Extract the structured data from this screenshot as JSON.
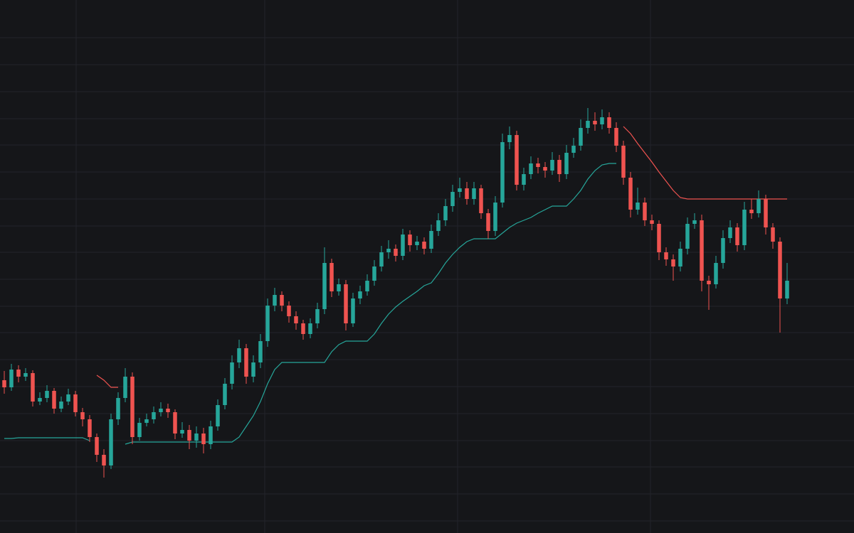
{
  "chart_data": {
    "type": "candlestick",
    "up_color": "#26a69a",
    "down_color": "#ef5350",
    "background": "#151619",
    "grid_color": "#22242a",
    "grid": true,
    "xlim": [
      -0.6,
      119.4
    ],
    "xticks": [
      10.1,
      36.6,
      63.7,
      90.8
    ],
    "ylim": [
      0,
      750
    ],
    "yticks": [
      17,
      55,
      93,
      130,
      168,
      206,
      244,
      282,
      319,
      357,
      395,
      432,
      470,
      508,
      546,
      583,
      621,
      659,
      697
    ],
    "ohlc": [
      [
        215,
        228,
        196,
        205
      ],
      [
        205,
        238,
        200,
        230
      ],
      [
        230,
        236,
        212,
        220
      ],
      [
        220,
        232,
        214,
        225
      ],
      [
        225,
        229,
        178,
        185
      ],
      [
        185,
        198,
        180,
        190
      ],
      [
        190,
        208,
        184,
        200
      ],
      [
        200,
        204,
        168,
        175
      ],
      [
        175,
        192,
        170,
        185
      ],
      [
        185,
        203,
        180,
        195
      ],
      [
        195,
        200,
        164,
        170
      ],
      [
        170,
        176,
        150,
        160
      ],
      [
        160,
        166,
        128,
        135
      ],
      [
        135,
        140,
        100,
        110
      ],
      [
        110,
        118,
        78,
        95
      ],
      [
        95,
        168,
        90,
        160
      ],
      [
        160,
        198,
        152,
        190
      ],
      [
        190,
        232,
        184,
        220
      ],
      [
        220,
        226,
        125,
        135
      ],
      [
        135,
        162,
        130,
        155
      ],
      [
        155,
        168,
        150,
        160
      ],
      [
        160,
        178,
        154,
        170
      ],
      [
        170,
        184,
        164,
        175
      ],
      [
        175,
        182,
        162,
        170
      ],
      [
        170,
        174,
        132,
        140
      ],
      [
        140,
        156,
        134,
        145
      ],
      [
        145,
        152,
        118,
        130
      ],
      [
        130,
        150,
        120,
        140
      ],
      [
        140,
        148,
        112,
        125
      ],
      [
        125,
        158,
        118,
        150
      ],
      [
        150,
        188,
        144,
        180
      ],
      [
        180,
        218,
        174,
        210
      ],
      [
        210,
        250,
        202,
        240
      ],
      [
        240,
        272,
        232,
        260
      ],
      [
        260,
        266,
        210,
        220
      ],
      [
        220,
        250,
        212,
        240
      ],
      [
        240,
        280,
        232,
        270
      ],
      [
        270,
        330,
        262,
        320
      ],
      [
        320,
        345,
        312,
        335
      ],
      [
        335,
        340,
        312,
        320
      ],
      [
        320,
        326,
        296,
        305
      ],
      [
        305,
        312,
        286,
        295
      ],
      [
        295,
        300,
        272,
        280
      ],
      [
        280,
        302,
        274,
        295
      ],
      [
        295,
        324,
        288,
        315
      ],
      [
        315,
        402,
        308,
        380
      ],
      [
        380,
        386,
        332,
        340
      ],
      [
        340,
        358,
        334,
        350
      ],
      [
        350,
        356,
        285,
        295
      ],
      [
        295,
        338,
        290,
        330
      ],
      [
        330,
        348,
        322,
        340
      ],
      [
        340,
        364,
        334,
        355
      ],
      [
        355,
        384,
        348,
        375
      ],
      [
        375,
        404,
        368,
        395
      ],
      [
        395,
        412,
        386,
        400
      ],
      [
        400,
        406,
        382,
        390
      ],
      [
        390,
        428,
        384,
        420
      ],
      [
        420,
        426,
        396,
        405
      ],
      [
        405,
        418,
        398,
        410
      ],
      [
        410,
        416,
        392,
        400
      ],
      [
        400,
        434,
        394,
        425
      ],
      [
        425,
        450,
        418,
        440
      ],
      [
        440,
        470,
        432,
        460
      ],
      [
        460,
        490,
        452,
        480
      ],
      [
        480,
        500,
        472,
        485
      ],
      [
        485,
        494,
        462,
        470
      ],
      [
        470,
        494,
        462,
        485
      ],
      [
        485,
        490,
        442,
        450
      ],
      [
        450,
        456,
        414,
        425
      ],
      [
        425,
        474,
        418,
        465
      ],
      [
        465,
        562,
        458,
        550
      ],
      [
        550,
        572,
        540,
        560
      ],
      [
        560,
        566,
        482,
        490
      ],
      [
        490,
        514,
        482,
        505
      ],
      [
        505,
        530,
        498,
        520
      ],
      [
        520,
        528,
        506,
        515
      ],
      [
        515,
        522,
        500,
        510
      ],
      [
        510,
        536,
        504,
        525
      ],
      [
        525,
        532,
        494,
        505
      ],
      [
        505,
        546,
        498,
        535
      ],
      [
        535,
        556,
        528,
        545
      ],
      [
        545,
        582,
        538,
        570
      ],
      [
        570,
        598,
        562,
        580
      ],
      [
        580,
        592,
        566,
        575
      ],
      [
        575,
        596,
        568,
        585
      ],
      [
        585,
        592,
        562,
        570
      ],
      [
        570,
        578,
        536,
        545
      ],
      [
        545,
        552,
        490,
        500
      ],
      [
        500,
        508,
        444,
        455
      ],
      [
        455,
        486,
        448,
        465
      ],
      [
        465,
        472,
        432,
        440
      ],
      [
        440,
        448,
        426,
        435
      ],
      [
        435,
        440,
        384,
        395
      ],
      [
        395,
        402,
        376,
        385
      ],
      [
        385,
        392,
        355,
        375
      ],
      [
        375,
        410,
        368,
        400
      ],
      [
        400,
        444,
        392,
        435
      ],
      [
        435,
        450,
        428,
        440
      ],
      [
        440,
        448,
        340,
        355
      ],
      [
        355,
        362,
        314,
        350
      ],
      [
        350,
        390,
        344,
        380
      ],
      [
        380,
        426,
        372,
        415
      ],
      [
        415,
        440,
        408,
        430
      ],
      [
        430,
        436,
        396,
        405
      ],
      [
        405,
        466,
        398,
        455
      ],
      [
        455,
        470,
        442,
        450
      ],
      [
        450,
        482,
        444,
        470
      ],
      [
        470,
        476,
        420,
        430
      ],
      [
        430,
        436,
        400,
        410
      ],
      [
        410,
        416,
        282,
        330
      ],
      [
        330,
        380,
        322,
        355
      ]
    ],
    "lines": [
      {
        "color": "#26a69a",
        "values": [
          133,
          133,
          134,
          134,
          134,
          134,
          134,
          134,
          134,
          134,
          134,
          134,
          130,
          null,
          null,
          null,
          null,
          125,
          128,
          128,
          128,
          128,
          128,
          128,
          128,
          128,
          128,
          128,
          128,
          128,
          128,
          128,
          128,
          135,
          150,
          165,
          185,
          210,
          230,
          240,
          240,
          240,
          240,
          240,
          240,
          240,
          255,
          265,
          270,
          270,
          270,
          270,
          280,
          295,
          308,
          318,
          326,
          333,
          340,
          348,
          352,
          365,
          380,
          392,
          402,
          410,
          414,
          414,
          414,
          414,
          422,
          430,
          436,
          440,
          444,
          450,
          455,
          460,
          460,
          460,
          470,
          482,
          498,
          510,
          518,
          520,
          520,
          null,
          null,
          null,
          null,
          null,
          null,
          null,
          null,
          null,
          null,
          null,
          null,
          null,
          null,
          null,
          null,
          null,
          null,
          null,
          null,
          null,
          null,
          null,
          null
        ]
      },
      {
        "color": "#ef5350",
        "values": [
          null,
          null,
          null,
          null,
          null,
          null,
          null,
          null,
          null,
          null,
          null,
          null,
          null,
          222,
          215,
          205,
          205,
          null,
          null,
          null,
          null,
          null,
          null,
          null,
          null,
          null,
          null,
          null,
          null,
          null,
          null,
          null,
          null,
          null,
          null,
          null,
          null,
          null,
          null,
          null,
          null,
          null,
          null,
          null,
          null,
          null,
          null,
          null,
          null,
          null,
          null,
          null,
          null,
          null,
          null,
          null,
          null,
          null,
          null,
          null,
          null,
          null,
          null,
          null,
          null,
          null,
          null,
          null,
          null,
          null,
          null,
          null,
          null,
          null,
          null,
          null,
          null,
          null,
          null,
          null,
          null,
          null,
          null,
          null,
          null,
          null,
          null,
          572,
          562,
          548,
          535,
          522,
          508,
          495,
          482,
          472,
          470,
          470,
          470,
          470,
          470,
          470,
          470,
          470,
          470,
          470,
          470,
          470,
          470,
          470,
          470
        ]
      }
    ]
  }
}
